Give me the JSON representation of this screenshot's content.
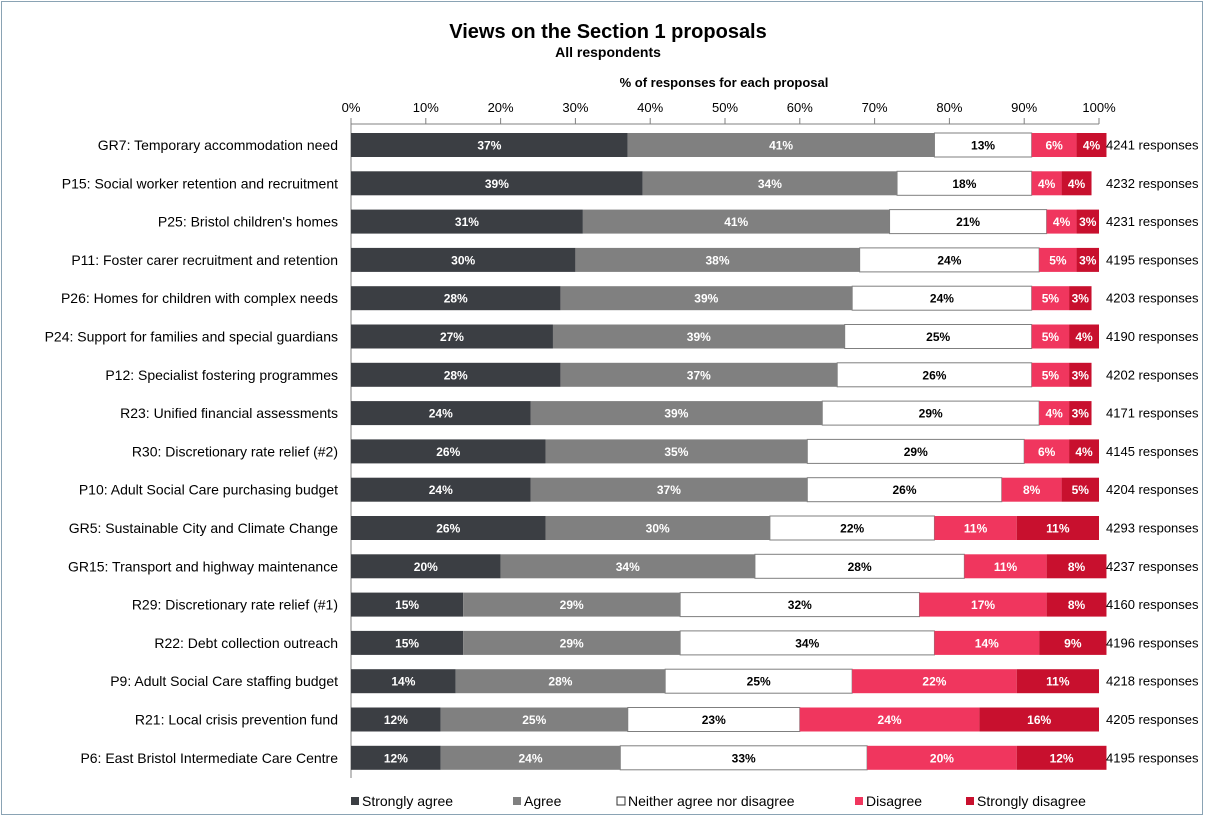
{
  "chart_data": {
    "type": "bar",
    "orientation": "horizontal",
    "stacked": true,
    "title": "Views on the Section 1 proposals",
    "subtitle": "All respondents",
    "xlabel": "% of responses for each proposal",
    "xlim": [
      0,
      100
    ],
    "x_ticks": [
      "0%",
      "10%",
      "20%",
      "30%",
      "40%",
      "50%",
      "60%",
      "70%",
      "80%",
      "90%",
      "100%"
    ],
    "legend_position": "bottom",
    "categories": [
      "GR7: Temporary accommodation need",
      "P15: Social worker retention and recruitment",
      "P25: Bristol children's homes",
      "P11: Foster carer recruitment and retention",
      "P26: Homes for children with complex needs",
      "P24: Support for families and special guardians",
      "P12: Specialist fostering programmes",
      "R23: Unified financial assessments",
      "R30: Discretionary rate relief (#2)",
      "P10: Adult Social Care purchasing budget",
      "GR5: Sustainable City and Climate Change",
      "GR15: Transport and highway maintenance",
      "R29: Discretionary rate relief (#1)",
      "R22: Debt collection outreach",
      "P9: Adult Social Care staffing budget",
      "R21: Local crisis prevention fund",
      "P6: East Bristol Intermediate Care Centre"
    ],
    "responses": [
      "4241 responses",
      "4232 responses",
      "4231 responses",
      "4195 responses",
      "4203 responses",
      "4190 responses",
      "4202 responses",
      "4171 responses",
      "4145 responses",
      "4204 responses",
      "4293 responses",
      "4237 responses",
      "4160 responses",
      "4196 responses",
      "4218 responses",
      "4205 responses",
      "4195 responses"
    ],
    "series": [
      {
        "name": "Strongly agree",
        "color": "#3b3e43",
        "label_color": "#ffffff",
        "values": [
          37,
          39,
          31,
          30,
          28,
          27,
          28,
          24,
          26,
          24,
          26,
          20,
          15,
          15,
          14,
          12,
          12
        ],
        "labels": [
          "37%",
          "39%",
          "31%",
          "30%",
          "28%",
          "27%",
          "28%",
          "24%",
          "26%",
          "24%",
          "26%",
          "20%",
          "15%",
          "15%",
          "14%",
          "12%",
          "12%"
        ]
      },
      {
        "name": "Agree",
        "color": "#808080",
        "label_color": "#ffffff",
        "values": [
          41,
          34,
          41,
          38,
          39,
          39,
          37,
          39,
          35,
          37,
          30,
          34,
          29,
          29,
          28,
          25,
          24
        ],
        "labels": [
          "41%",
          "34%",
          "41%",
          "38%",
          "39%",
          "39%",
          "37%",
          "39%",
          "35%",
          "37%",
          "30%",
          "34%",
          "29%",
          "29%",
          "28%",
          "25%",
          "24%"
        ]
      },
      {
        "name": "Neither agree nor disagree",
        "color": "#ffffff",
        "label_color": "#000000",
        "values": [
          13,
          18,
          21,
          24,
          24,
          25,
          26,
          29,
          29,
          26,
          22,
          28,
          32,
          34,
          25,
          23,
          33
        ],
        "labels": [
          "13%",
          "18%",
          "21%",
          "24%",
          "24%",
          "25%",
          "26%",
          "29%",
          "29%",
          "26%",
          "22%",
          "28%",
          "32%",
          "34%",
          "25%",
          "23%",
          "33%"
        ]
      },
      {
        "name": "Disagree",
        "color": "#f0365e",
        "label_color": "#ffffff",
        "values": [
          6,
          4,
          4,
          5,
          5,
          5,
          5,
          4,
          6,
          8,
          11,
          11,
          17,
          14,
          22,
          24,
          20
        ],
        "labels": [
          "6%",
          "4%",
          "4%",
          "5%",
          "5%",
          "5%",
          "5%",
          "4%",
          "6%",
          "8%",
          "11%",
          "11%",
          "17%",
          "14%",
          "22%",
          "24%",
          "20%"
        ]
      },
      {
        "name": "Strongly disagree",
        "color": "#c8102e",
        "label_color": "#ffffff",
        "values": [
          4,
          4,
          3,
          3,
          3,
          4,
          3,
          3,
          4,
          5,
          11,
          8,
          8,
          9,
          11,
          16,
          12
        ],
        "labels": [
          "4%",
          "4%",
          "3%",
          "3%",
          "3%",
          "4%",
          "3%",
          "3%",
          "4%",
          "5%",
          "11%",
          "8%",
          "8%",
          "9%",
          "11%",
          "16%",
          "12%"
        ]
      }
    ]
  }
}
